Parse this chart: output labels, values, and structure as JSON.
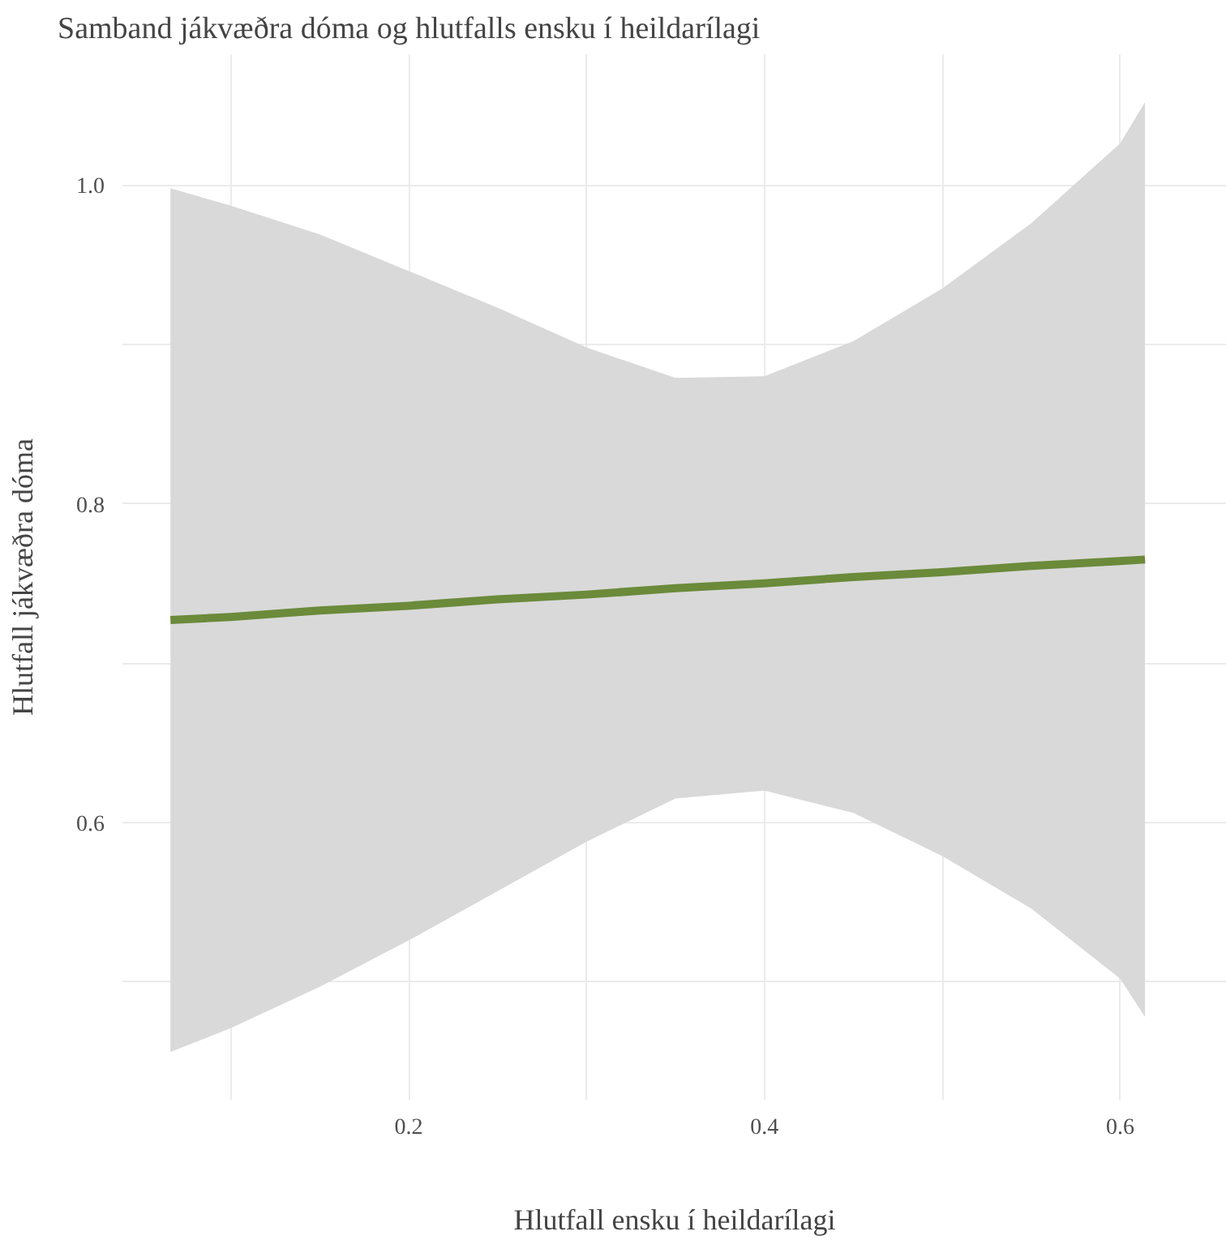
{
  "chart_data": {
    "type": "line",
    "title": "Samband jákvæðra dóma og hlutfalls ensku í heildarílagi",
    "xlabel": "Hlutfall ensku í heildarílagi",
    "ylabel": "Hlutfall jákvæðra dóma",
    "x": [
      0.066,
      0.1,
      0.15,
      0.2,
      0.25,
      0.3,
      0.35,
      0.4,
      0.45,
      0.5,
      0.55,
      0.6,
      0.614
    ],
    "series": [
      {
        "color": "#6b8a3a",
        "values": [
          0.727,
          0.729,
          0.733,
          0.736,
          0.74,
          0.743,
          0.747,
          0.75,
          0.754,
          0.757,
          0.761,
          0.764,
          0.765
        ],
        "upper": [
          0.998,
          0.987,
          0.969,
          0.946,
          0.923,
          0.898,
          0.879,
          0.88,
          0.902,
          0.935,
          0.976,
          1.026,
          1.052
        ],
        "lower": [
          0.456,
          0.471,
          0.497,
          0.526,
          0.557,
          0.588,
          0.615,
          0.62,
          0.606,
          0.579,
          0.546,
          0.502,
          0.478
        ]
      }
    ],
    "xlim": [
      0.039,
      0.66
    ],
    "ylim": [
      0.426,
      1.082
    ],
    "xticks": [
      {
        "value": 0.1,
        "label": null
      },
      0.2,
      {
        "value": 0.3,
        "label": null
      },
      0.4,
      {
        "value": 0.5,
        "label": null
      },
      0.6
    ],
    "yticks": [
      {
        "value": 0.5,
        "label": null
      },
      0.6,
      {
        "value": 0.7,
        "label": null
      },
      0.8,
      {
        "value": 0.9,
        "label": null
      },
      {
        "value": 1.0,
        "label": "1.0"
      }
    ],
    "grid": true,
    "line_style": "solid"
  }
}
